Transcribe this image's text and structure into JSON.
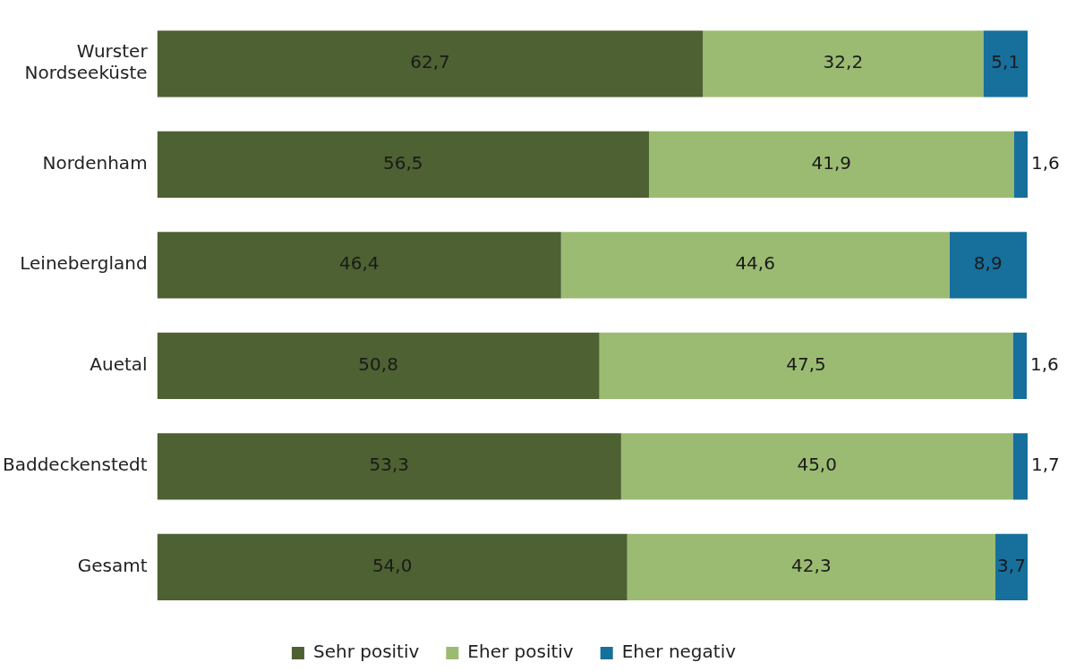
{
  "chart_data": {
    "type": "bar",
    "orientation": "horizontal",
    "stacked": true,
    "categories": [
      "Wurster Nordseeküste",
      "Nordenham",
      "Leinebergland",
      "Auetal",
      "Baddeckenstedt",
      "Gesamt"
    ],
    "series": [
      {
        "name": "Sehr positiv",
        "color": "#4e6132",
        "values": [
          62.7,
          56.5,
          46.4,
          50.8,
          53.3,
          54.0
        ],
        "value_labels": [
          "62,7",
          "56,5",
          "46,4",
          "50,8",
          "53,3",
          "54,0"
        ]
      },
      {
        "name": "Eher positiv",
        "color": "#9bbb72",
        "values": [
          32.2,
          41.9,
          44.6,
          47.5,
          45.0,
          42.3
        ],
        "value_labels": [
          "32,2",
          "41,9",
          "44,6",
          "47,5",
          "45,0",
          "42,3"
        ]
      },
      {
        "name": "Eher negativ",
        "color": "#176f9c",
        "values": [
          5.1,
          1.6,
          8.9,
          1.6,
          1.7,
          3.7
        ],
        "value_labels": [
          "5,1",
          "1,6",
          "8,9",
          "1,6",
          "1,7",
          "3,7"
        ]
      }
    ],
    "tick_labels": "y",
    "legend": "bottom"
  }
}
